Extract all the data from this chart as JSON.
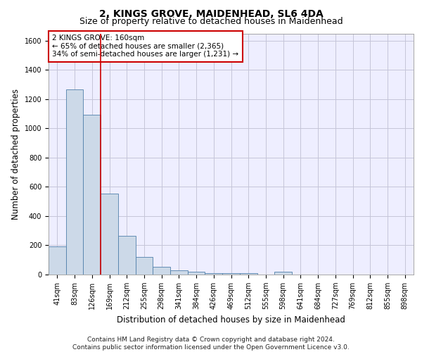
{
  "title": "2, KINGS GROVE, MAIDENHEAD, SL6 4DA",
  "subtitle": "Size of property relative to detached houses in Maidenhead",
  "xlabel": "Distribution of detached houses by size in Maidenhead",
  "ylabel": "Number of detached properties",
  "footer_line1": "Contains HM Land Registry data © Crown copyright and database right 2024.",
  "footer_line2": "Contains public sector information licensed under the Open Government Licence v3.0.",
  "annotation_line1": "2 KINGS GROVE: 160sqm",
  "annotation_line2": "← 65% of detached houses are smaller (2,365)",
  "annotation_line3": "34% of semi-detached houses are larger (1,231) →",
  "categories": [
    "41sqm",
    "83sqm",
    "126sqm",
    "169sqm",
    "212sqm",
    "255sqm",
    "298sqm",
    "341sqm",
    "384sqm",
    "426sqm",
    "469sqm",
    "512sqm",
    "555sqm",
    "598sqm",
    "641sqm",
    "684sqm",
    "727sqm",
    "769sqm",
    "812sqm",
    "855sqm",
    "898sqm"
  ],
  "values": [
    195,
    1265,
    1095,
    555,
    265,
    120,
    55,
    30,
    20,
    10,
    10,
    10,
    0,
    20,
    0,
    0,
    0,
    0,
    0,
    0,
    0
  ],
  "bar_color": "#ccd9e8",
  "bar_edge_color": "#4f7faa",
  "grid_color": "#c5c5d8",
  "background_color": "#eeeeff",
  "ylim": [
    0,
    1650
  ],
  "yticks": [
    0,
    200,
    400,
    600,
    800,
    1000,
    1200,
    1400,
    1600
  ],
  "red_line_color": "#cc0000",
  "annotation_box_color": "#cc0000",
  "title_fontsize": 10,
  "subtitle_fontsize": 9,
  "axis_label_fontsize": 8.5,
  "tick_fontsize": 7,
  "annotation_fontsize": 7.5,
  "footer_fontsize": 6.5
}
